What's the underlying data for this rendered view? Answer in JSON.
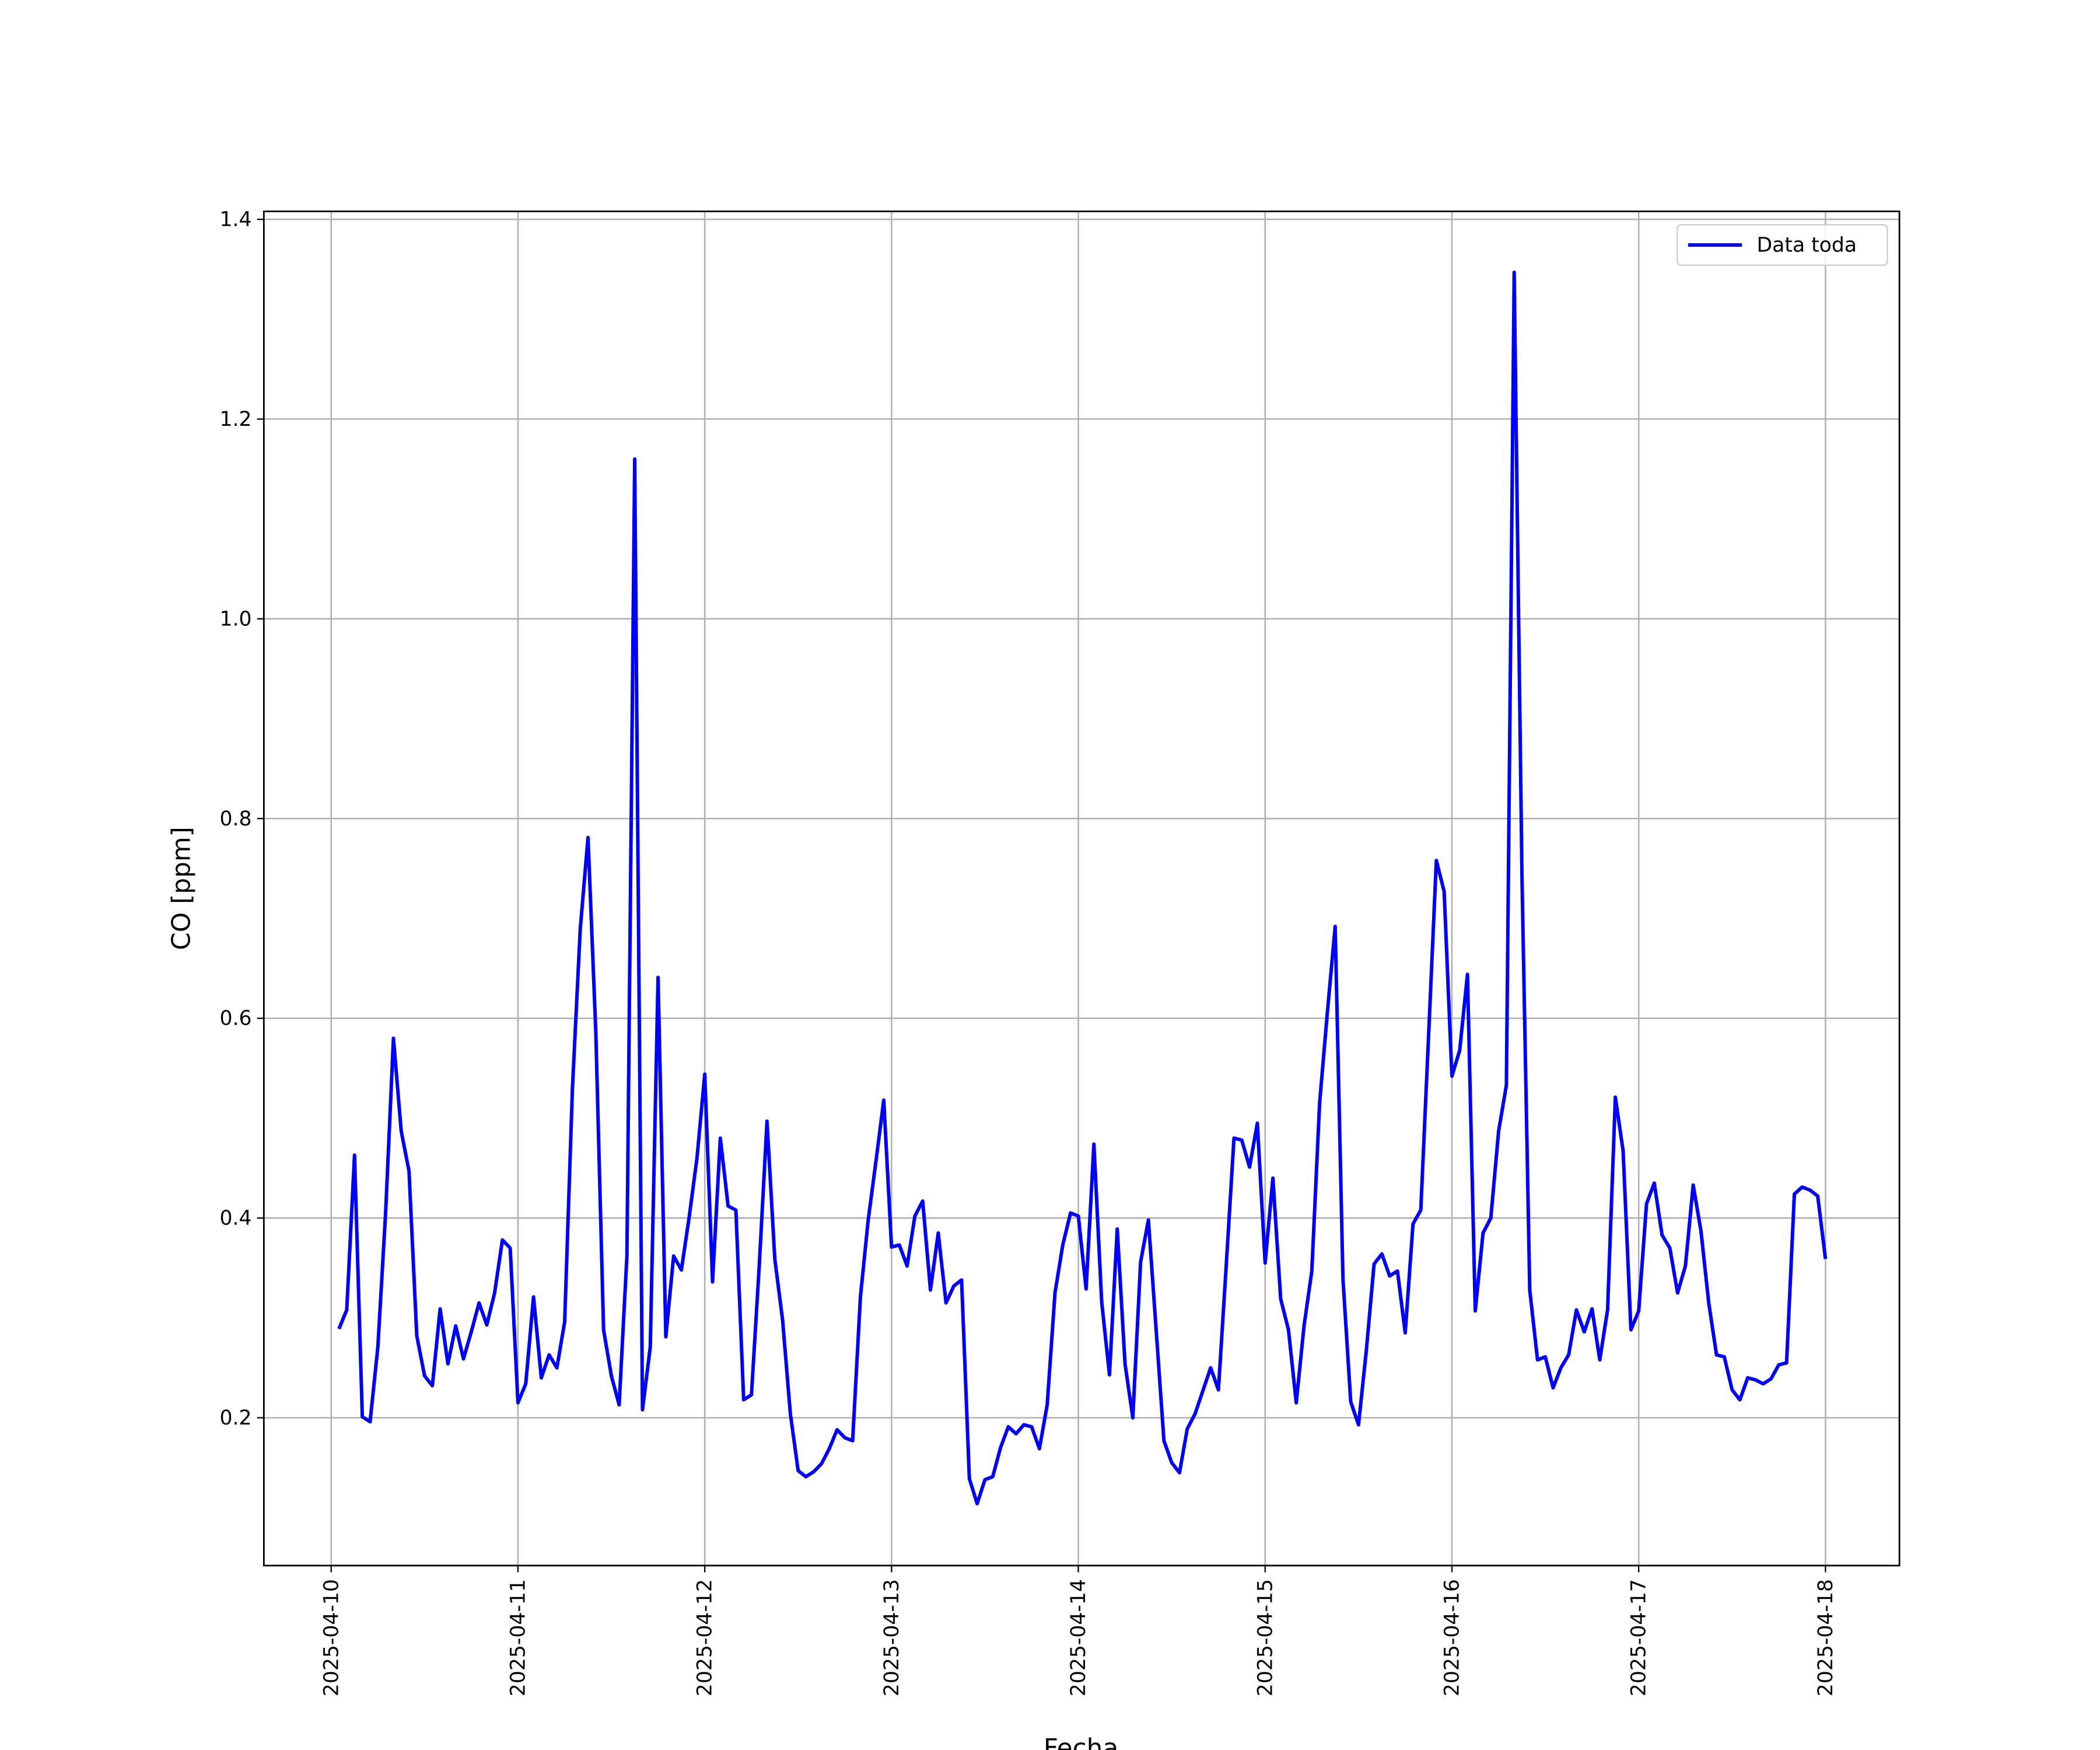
{
  "chart_data": {
    "type": "line",
    "xlabel": "Fecha",
    "ylabel": "CO [ppm]",
    "x": [
      "2025-04-10 01:00",
      "2025-04-10 02:00",
      "2025-04-10 03:00",
      "2025-04-10 04:00",
      "2025-04-10 05:00",
      "2025-04-10 06:00",
      "2025-04-10 07:00",
      "2025-04-10 08:00",
      "2025-04-10 09:00",
      "2025-04-10 10:00",
      "2025-04-10 11:00",
      "2025-04-10 12:00",
      "2025-04-10 13:00",
      "2025-04-10 14:00",
      "2025-04-10 15:00",
      "2025-04-10 16:00",
      "2025-04-10 17:00",
      "2025-04-10 18:00",
      "2025-04-10 19:00",
      "2025-04-10 20:00",
      "2025-04-10 21:00",
      "2025-04-10 22:00",
      "2025-04-10 23:00",
      "2025-04-11 00:00",
      "2025-04-11 01:00",
      "2025-04-11 02:00",
      "2025-04-11 03:00",
      "2025-04-11 04:00",
      "2025-04-11 05:00",
      "2025-04-11 06:00",
      "2025-04-11 07:00",
      "2025-04-11 08:00",
      "2025-04-11 09:00",
      "2025-04-11 10:00",
      "2025-04-11 11:00",
      "2025-04-11 12:00",
      "2025-04-11 13:00",
      "2025-04-11 14:00",
      "2025-04-11 15:00",
      "2025-04-11 16:00",
      "2025-04-11 17:00",
      "2025-04-11 18:00",
      "2025-04-11 19:00",
      "2025-04-11 20:00",
      "2025-04-11 21:00",
      "2025-04-11 22:00",
      "2025-04-11 23:00",
      "2025-04-12 00:00",
      "2025-04-12 01:00",
      "2025-04-12 02:00",
      "2025-04-12 03:00",
      "2025-04-12 04:00",
      "2025-04-12 05:00",
      "2025-04-12 06:00",
      "2025-04-12 07:00",
      "2025-04-12 08:00",
      "2025-04-12 09:00",
      "2025-04-12 10:00",
      "2025-04-12 11:00",
      "2025-04-12 12:00",
      "2025-04-12 13:00",
      "2025-04-12 14:00",
      "2025-04-12 15:00",
      "2025-04-12 16:00",
      "2025-04-12 17:00",
      "2025-04-12 18:00",
      "2025-04-12 19:00",
      "2025-04-12 20:00",
      "2025-04-12 21:00",
      "2025-04-12 22:00",
      "2025-04-12 23:00",
      "2025-04-13 00:00",
      "2025-04-13 01:00",
      "2025-04-13 02:00",
      "2025-04-13 03:00",
      "2025-04-13 04:00",
      "2025-04-13 05:00",
      "2025-04-13 06:00",
      "2025-04-13 07:00",
      "2025-04-13 08:00",
      "2025-04-13 09:00",
      "2025-04-13 10:00",
      "2025-04-13 11:00",
      "2025-04-13 12:00",
      "2025-04-13 13:00",
      "2025-04-13 14:00",
      "2025-04-13 15:00",
      "2025-04-13 16:00",
      "2025-04-13 17:00",
      "2025-04-13 18:00",
      "2025-04-13 19:00",
      "2025-04-13 20:00",
      "2025-04-13 21:00",
      "2025-04-13 22:00",
      "2025-04-13 23:00",
      "2025-04-14 00:00",
      "2025-04-14 01:00",
      "2025-04-14 02:00",
      "2025-04-14 03:00",
      "2025-04-14 04:00",
      "2025-04-14 05:00",
      "2025-04-14 06:00",
      "2025-04-14 07:00",
      "2025-04-14 08:00",
      "2025-04-14 09:00",
      "2025-04-14 10:00",
      "2025-04-14 11:00",
      "2025-04-14 12:00",
      "2025-04-14 13:00",
      "2025-04-14 14:00",
      "2025-04-14 15:00",
      "2025-04-14 16:00",
      "2025-04-14 17:00",
      "2025-04-14 18:00",
      "2025-04-14 19:00",
      "2025-04-14 20:00",
      "2025-04-14 21:00",
      "2025-04-14 22:00",
      "2025-04-14 23:00",
      "2025-04-15 00:00",
      "2025-04-15 01:00",
      "2025-04-15 02:00",
      "2025-04-15 03:00",
      "2025-04-15 04:00",
      "2025-04-15 05:00",
      "2025-04-15 06:00",
      "2025-04-15 07:00",
      "2025-04-15 08:00",
      "2025-04-15 09:00",
      "2025-04-15 10:00",
      "2025-04-15 11:00",
      "2025-04-15 12:00",
      "2025-04-15 13:00",
      "2025-04-15 14:00",
      "2025-04-15 15:00",
      "2025-04-15 16:00",
      "2025-04-15 17:00",
      "2025-04-15 18:00",
      "2025-04-15 19:00",
      "2025-04-15 20:00",
      "2025-04-15 21:00",
      "2025-04-15 22:00",
      "2025-04-15 23:00",
      "2025-04-16 00:00",
      "2025-04-16 01:00",
      "2025-04-16 02:00",
      "2025-04-16 03:00",
      "2025-04-16 04:00",
      "2025-04-16 05:00",
      "2025-04-16 06:00",
      "2025-04-16 07:00",
      "2025-04-16 08:00",
      "2025-04-16 09:00",
      "2025-04-16 10:00",
      "2025-04-16 11:00",
      "2025-04-16 12:00",
      "2025-04-16 13:00",
      "2025-04-16 14:00",
      "2025-04-16 15:00",
      "2025-04-16 16:00",
      "2025-04-16 17:00",
      "2025-04-16 18:00",
      "2025-04-16 19:00",
      "2025-04-16 20:00",
      "2025-04-16 21:00",
      "2025-04-16 22:00",
      "2025-04-16 23:00",
      "2025-04-17 00:00",
      "2025-04-17 01:00",
      "2025-04-17 02:00",
      "2025-04-17 03:00",
      "2025-04-17 04:00",
      "2025-04-17 05:00",
      "2025-04-17 06:00",
      "2025-04-17 07:00",
      "2025-04-17 08:00",
      "2025-04-17 09:00",
      "2025-04-17 10:00",
      "2025-04-17 11:00",
      "2025-04-17 12:00",
      "2025-04-17 13:00",
      "2025-04-17 14:00",
      "2025-04-17 15:00",
      "2025-04-17 16:00",
      "2025-04-17 17:00",
      "2025-04-17 18:00",
      "2025-04-17 19:00",
      "2025-04-17 20:00",
      "2025-04-17 21:00",
      "2025-04-17 22:00",
      "2025-04-17 23:00",
      "2025-04-18 00:00"
    ],
    "series": [
      {
        "name": "Data toda",
        "color": "#0000ff",
        "values": [
          0.289,
          0.308,
          0.463,
          0.201,
          0.196,
          0.271,
          0.406,
          0.58,
          0.487,
          0.447,
          0.282,
          0.242,
          0.232,
          0.309,
          0.254,
          0.292,
          0.259,
          0.286,
          0.315,
          0.293,
          0.325,
          0.378,
          0.37,
          0.215,
          0.234,
          0.321,
          0.24,
          0.263,
          0.25,
          0.296,
          0.53,
          0.689,
          0.781,
          0.587,
          0.288,
          0.242,
          0.213,
          0.362,
          1.16,
          0.208,
          0.271,
          0.641,
          0.281,
          0.362,
          0.348,
          0.401,
          0.46,
          0.544,
          0.336,
          0.48,
          0.412,
          0.408,
          0.218,
          0.223,
          0.352,
          0.497,
          0.359,
          0.298,
          0.204,
          0.147,
          0.141,
          0.146,
          0.154,
          0.169,
          0.188,
          0.18,
          0.177,
          0.321,
          0.398,
          0.457,
          0.518,
          0.371,
          0.373,
          0.352,
          0.402,
          0.417,
          0.328,
          0.385,
          0.315,
          0.332,
          0.338,
          0.139,
          0.114,
          0.138,
          0.141,
          0.17,
          0.191,
          0.184,
          0.193,
          0.191,
          0.169,
          0.213,
          0.325,
          0.373,
          0.405,
          0.402,
          0.329,
          0.474,
          0.316,
          0.243,
          0.389,
          0.254,
          0.2,
          0.356,
          0.398,
          0.288,
          0.177,
          0.155,
          0.145,
          0.189,
          0.204,
          0.227,
          0.25,
          0.228,
          0.352,
          0.48,
          0.478,
          0.451,
          0.495,
          0.355,
          0.44,
          0.319,
          0.288,
          0.215,
          0.292,
          0.347,
          0.515,
          0.606,
          0.692,
          0.339,
          0.216,
          0.193,
          0.267,
          0.354,
          0.364,
          0.342,
          0.347,
          0.285,
          0.394,
          0.408,
          0.582,
          0.758,
          0.727,
          0.542,
          0.568,
          0.644,
          0.307,
          0.385,
          0.4,
          0.487,
          0.533,
          1.347,
          0.743,
          0.328,
          0.258,
          0.261,
          0.23,
          0.25,
          0.263,
          0.308,
          0.286,
          0.309,
          0.258,
          0.308,
          0.521,
          0.467,
          0.288,
          0.307,
          0.414,
          0.435,
          0.383,
          0.37,
          0.325,
          0.352,
          0.433,
          0.387,
          0.315,
          0.263,
          0.261,
          0.228,
          0.218,
          0.24,
          0.238,
          0.234,
          0.239,
          0.253,
          0.255,
          0.424,
          0.431,
          0.428,
          0.422,
          0.359
        ]
      }
    ],
    "xlim": [
      "2025-04-09 15:21",
      "2025-04-18 09:30"
    ],
    "xticks": [
      "2025-04-10",
      "2025-04-11",
      "2025-04-12",
      "2025-04-13",
      "2025-04-14",
      "2025-04-15",
      "2025-04-16",
      "2025-04-17",
      "2025-04-18"
    ],
    "ylim": [
      0.052,
      1.408
    ],
    "yticks": [
      0.2,
      0.4,
      0.6,
      0.8,
      {
        "value": 1,
        "label": "1.0"
      },
      1.2,
      1.4
    ],
    "grid": true,
    "legend": "upper right"
  }
}
